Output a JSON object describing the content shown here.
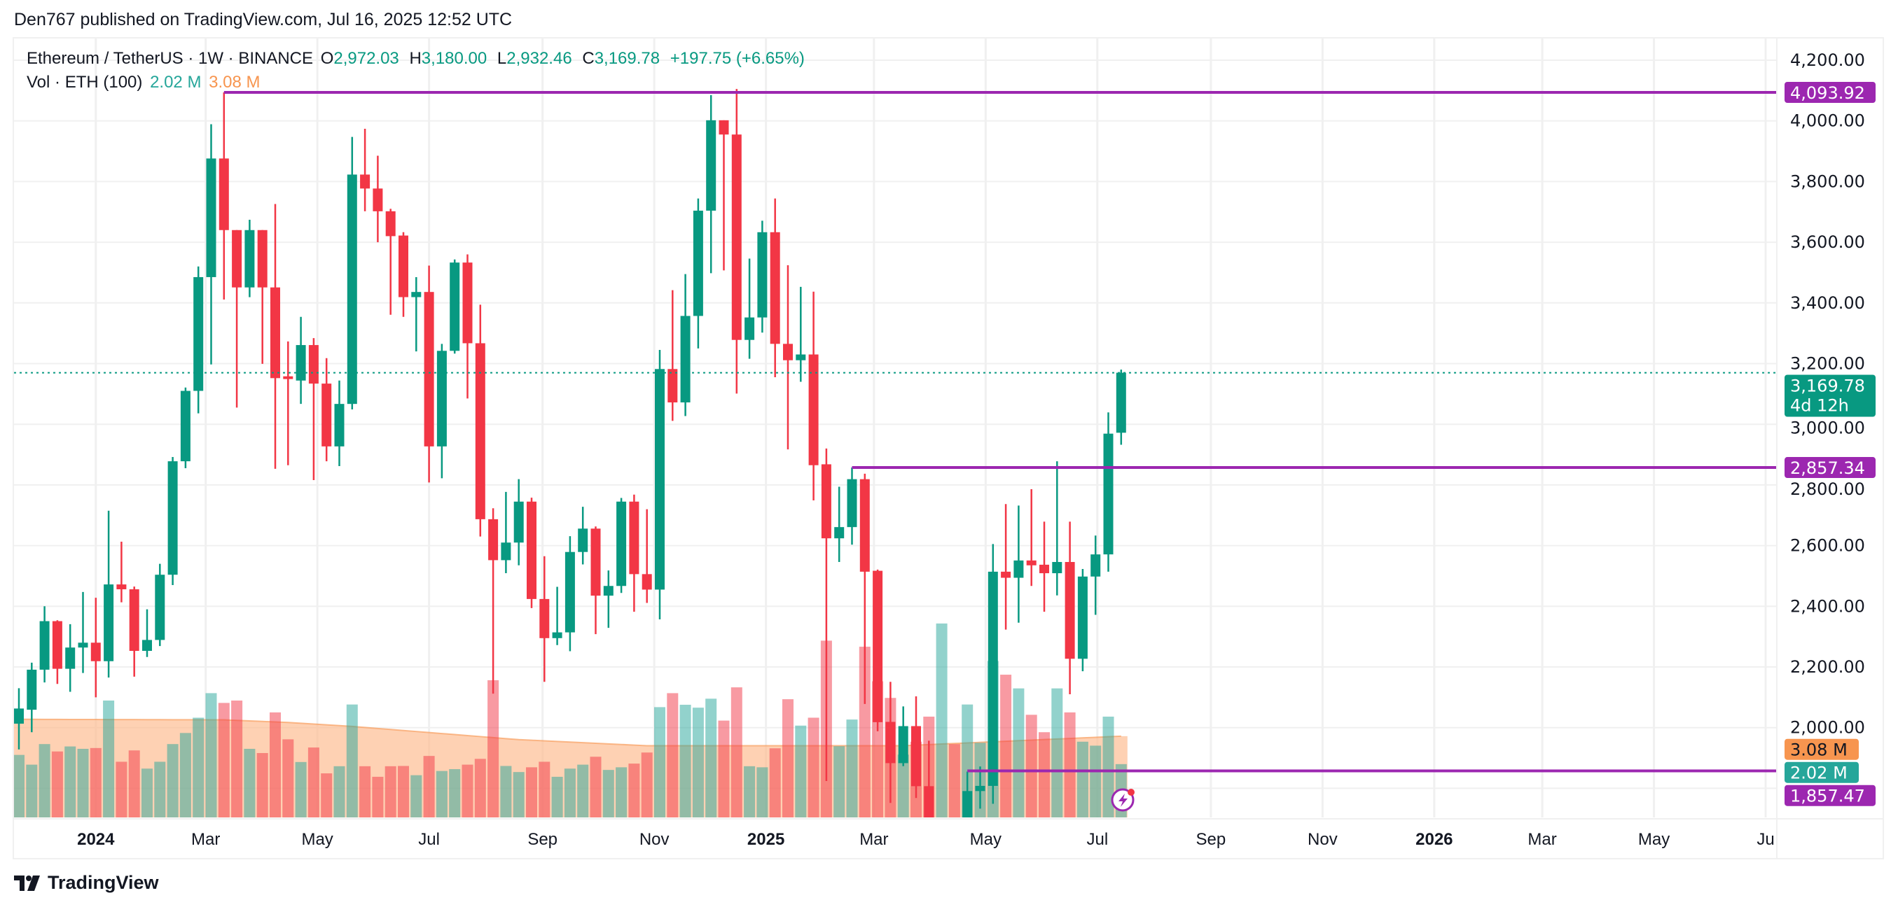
{
  "publish_line": "Den767 published on TradingView.com, Jul 16, 2025 12:52 UTC",
  "legend": {
    "symbol": "Ethereum / TetherUS · 1W · BINANCE",
    "o_label": "O",
    "o_value": "2,972.03",
    "h_label": "H",
    "h_value": "3,180.00",
    "l_label": "L",
    "l_value": "2,932.46",
    "c_label": "C",
    "c_value": "3,169.78",
    "change": "+197.75 (+6.65%)",
    "vol_label": "Vol · ETH (100)",
    "vol_value": "2.02 M",
    "vol_ma_value": "3.08 M"
  },
  "logo_text": "TradingView",
  "colors": {
    "up": "#089981",
    "down": "#f23645",
    "vol_up": "#26a69a",
    "vol_down": "#f23645",
    "vol_ma": "#f7954f",
    "level": "#9c27b0",
    "grid": "#f0f0f0",
    "text": "#131722"
  },
  "chart_data": {
    "type": "candlestick",
    "interval": "1W",
    "first_week": "2023-11-20",
    "ohlcv_fields": [
      "open",
      "high",
      "low",
      "close",
      "volume_millions"
    ],
    "candles": [
      [
        2013,
        2130,
        1928,
        2063,
        2.37
      ],
      [
        2059,
        2214,
        1985,
        2191,
        2.0
      ],
      [
        2191,
        2400,
        2149,
        2351,
        2.78
      ],
      [
        2351,
        2354,
        2144,
        2194,
        2.5
      ],
      [
        2194,
        2341,
        2118,
        2264,
        2.69
      ],
      [
        2264,
        2447,
        2180,
        2280,
        2.6
      ],
      [
        2280,
        2428,
        2100,
        2219,
        2.63
      ],
      [
        2219,
        2715,
        2165,
        2472,
        4.43
      ],
      [
        2472,
        2613,
        2413,
        2456,
        2.11
      ],
      [
        2456,
        2465,
        2168,
        2253,
        2.54
      ],
      [
        2253,
        2390,
        2233,
        2289,
        1.85
      ],
      [
        2289,
        2540,
        2269,
        2504,
        2.11
      ],
      [
        2504,
        2892,
        2470,
        2878,
        2.78
      ],
      [
        2878,
        3121,
        2855,
        3110,
        3.2
      ],
      [
        3110,
        3520,
        3036,
        3485,
        3.78
      ],
      [
        3485,
        3989,
        3197,
        3876,
        4.71
      ],
      [
        3876,
        4093.92,
        3411,
        3640,
        4.34
      ],
      [
        3640,
        3640,
        3055,
        3451,
        4.43
      ],
      [
        3451,
        3674,
        3419,
        3640,
        2.6
      ],
      [
        3640,
        3640,
        3199,
        3451,
        2.44
      ],
      [
        3451,
        3726,
        2853,
        3152,
        3.98
      ],
      [
        3158,
        3273,
        2865,
        3149,
        2.96
      ],
      [
        3144,
        3354,
        3067,
        3261,
        2.1
      ],
      [
        3261,
        3284,
        2816,
        3134,
        2.65
      ],
      [
        3134,
        3218,
        2878,
        2927,
        1.67
      ],
      [
        2927,
        3144,
        2862,
        3067,
        1.94
      ],
      [
        3067,
        3947,
        3049,
        3823,
        4.28
      ],
      [
        3823,
        3974,
        3702,
        3777,
        1.94
      ],
      [
        3777,
        3885,
        3600,
        3702,
        1.54
      ],
      [
        3702,
        3710,
        3361,
        3620,
        1.94
      ],
      [
        3622,
        3633,
        3354,
        3419,
        1.95
      ],
      [
        3419,
        3485,
        3240,
        3436,
        1.6
      ],
      [
        3436,
        3523,
        2808,
        2927,
        2.33
      ],
      [
        2927,
        3265,
        2822,
        3242,
        1.76
      ],
      [
        3242,
        3543,
        3233,
        3533,
        1.83
      ],
      [
        3533,
        3560,
        3085,
        3267,
        2.0
      ],
      [
        3267,
        3394,
        2630,
        2687,
        2.22
      ],
      [
        2687,
        2723,
        2112,
        2552,
        5.2
      ],
      [
        2552,
        2777,
        2509,
        2610,
        1.95
      ],
      [
        2610,
        2819,
        2535,
        2745,
        1.72
      ],
      [
        2745,
        2758,
        2394,
        2424,
        1.9
      ],
      [
        2424,
        2565,
        2151,
        2295,
        2.11
      ],
      [
        2295,
        2464,
        2272,
        2314,
        1.54
      ],
      [
        2314,
        2631,
        2252,
        2579,
        1.85
      ],
      [
        2579,
        2728,
        2538,
        2656,
        2.0
      ],
      [
        2656,
        2663,
        2308,
        2435,
        2.3
      ],
      [
        2435,
        2518,
        2329,
        2467,
        1.8
      ],
      [
        2467,
        2757,
        2444,
        2745,
        1.9
      ],
      [
        2745,
        2768,
        2382,
        2506,
        2.04
      ],
      [
        2506,
        2720,
        2411,
        2455,
        2.46
      ],
      [
        2455,
        3245,
        2357,
        3182,
        4.18
      ],
      [
        3182,
        3442,
        3011,
        3072,
        4.71
      ],
      [
        3072,
        3495,
        3027,
        3357,
        4.27
      ],
      [
        3357,
        3744,
        3250,
        3704,
        4.16
      ],
      [
        3704,
        4085,
        3498,
        4002,
        4.5
      ],
      [
        4002,
        4002,
        3507,
        3955,
        3.67
      ],
      [
        3955,
        4105,
        3101,
        3278,
        4.93
      ],
      [
        3278,
        3546,
        3216,
        3352,
        1.94
      ],
      [
        3352,
        3671,
        3302,
        3633,
        1.9
      ],
      [
        3633,
        3744,
        3155,
        3265,
        2.62
      ],
      [
        3265,
        3524,
        2917,
        3211,
        4.48
      ],
      [
        3211,
        3453,
        3140,
        3230,
        3.48
      ],
      [
        3230,
        3437,
        2749,
        2865,
        3.78
      ],
      [
        2868,
        2920,
        1824,
        2624,
        6.7
      ],
      [
        2624,
        2794,
        2546,
        2661,
        2.7
      ],
      [
        2661,
        2857.34,
        2603,
        2819,
        3.71
      ],
      [
        2819,
        2837,
        2078,
        2514,
        6.47
      ],
      [
        2517,
        2521,
        1988,
        2018,
        5.16
      ],
      [
        2019,
        2151,
        1752,
        1883,
        4.53
      ],
      [
        1883,
        2070,
        1873,
        2005,
        2.38
      ],
      [
        2005,
        2103,
        1768,
        1807,
        2.87
      ],
      [
        1807,
        1957,
        1550,
        1580,
        3.82
      ],
      [
        1581,
        1690,
        1385,
        1620,
        7.35
      ],
      [
        1620,
        1690,
        1540,
        1590,
        2.78
      ],
      [
        1590,
        1855,
        1540,
        1791,
        4.28
      ],
      [
        1791,
        1872,
        1733,
        1808,
        2.83
      ],
      [
        1808,
        2605,
        1749,
        2514,
        5.93
      ],
      [
        2514,
        2737,
        2323,
        2494,
        5.41
      ],
      [
        2494,
        2732,
        2346,
        2551,
        4.89
      ],
      [
        2551,
        2786,
        2467,
        2535,
        3.89
      ],
      [
        2537,
        2679,
        2382,
        2509,
        3.23
      ],
      [
        2509,
        2878,
        2436,
        2546,
        4.89
      ],
      [
        2546,
        2679,
        2110,
        2227,
        3.98
      ],
      [
        2227,
        2523,
        2186,
        2498,
        2.87
      ],
      [
        2498,
        2633,
        2372,
        2571,
        2.72
      ],
      [
        2571,
        3039,
        2514,
        2969,
        3.82
      ],
      [
        2972.03,
        3180,
        2932.46,
        3169.78,
        2.02
      ]
    ],
    "volume_ma_keyframes": [
      [
        1,
        3.72
      ],
      [
        17,
        3.7
      ],
      [
        22,
        3.6
      ],
      [
        27,
        3.45
      ],
      [
        40,
        2.95
      ],
      [
        50,
        2.72
      ],
      [
        70,
        2.72
      ],
      [
        87,
        3.08
      ]
    ],
    "y_ticks": [
      "4,200.00",
      "4,000.00",
      "3,800.00",
      "3,600.00",
      "3,400.00",
      "3,200.00",
      "3,000.00",
      "2,800.00",
      "2,600.00",
      "2,400.00",
      "2,200.00",
      "2,000.00"
    ],
    "y_tick_values": [
      4200,
      4000,
      3800,
      3600,
      3400,
      3200,
      3000,
      2800,
      2600,
      2400,
      2200,
      2000
    ],
    "x_ticks": [
      {
        "label": "2024",
        "date": "2024-01-01",
        "bold": true
      },
      {
        "label": "Mar",
        "date": "2024-03-01"
      },
      {
        "label": "May",
        "date": "2024-05-01"
      },
      {
        "label": "Jul",
        "date": "2024-07-01"
      },
      {
        "label": "Sep",
        "date": "2024-09-01"
      },
      {
        "label": "Nov",
        "date": "2024-11-01"
      },
      {
        "label": "2025",
        "date": "2025-01-01",
        "bold": true
      },
      {
        "label": "Mar",
        "date": "2025-03-01"
      },
      {
        "label": "May",
        "date": "2025-05-01"
      },
      {
        "label": "Jul",
        "date": "2025-07-01"
      },
      {
        "label": "Sep",
        "date": "2025-09-01"
      },
      {
        "label": "Nov",
        "date": "2025-11-01"
      },
      {
        "label": "2026",
        "date": "2026-01-01",
        "bold": true
      },
      {
        "label": "Mar",
        "date": "2026-03-01"
      },
      {
        "label": "May",
        "date": "2026-05-01"
      },
      {
        "label": "Ju",
        "date": "2026-07-01"
      }
    ],
    "levels": [
      {
        "price": 4093.92,
        "label": "4,093.92",
        "from_candle": 17
      },
      {
        "price": 2857.34,
        "label": "2,857.34",
        "from_candle": 66
      },
      {
        "price": 1857.47,
        "label": "1,857.47",
        "from_candle": 75
      }
    ],
    "last_price": {
      "price": 3169.78,
      "label": "3,169.78",
      "countdown": "4d 12h"
    },
    "volume_labels": {
      "ma_label": "3.08 M",
      "ma_value": 3.08,
      "vol_label": "2.02 M",
      "vol_value": 2.02
    }
  }
}
